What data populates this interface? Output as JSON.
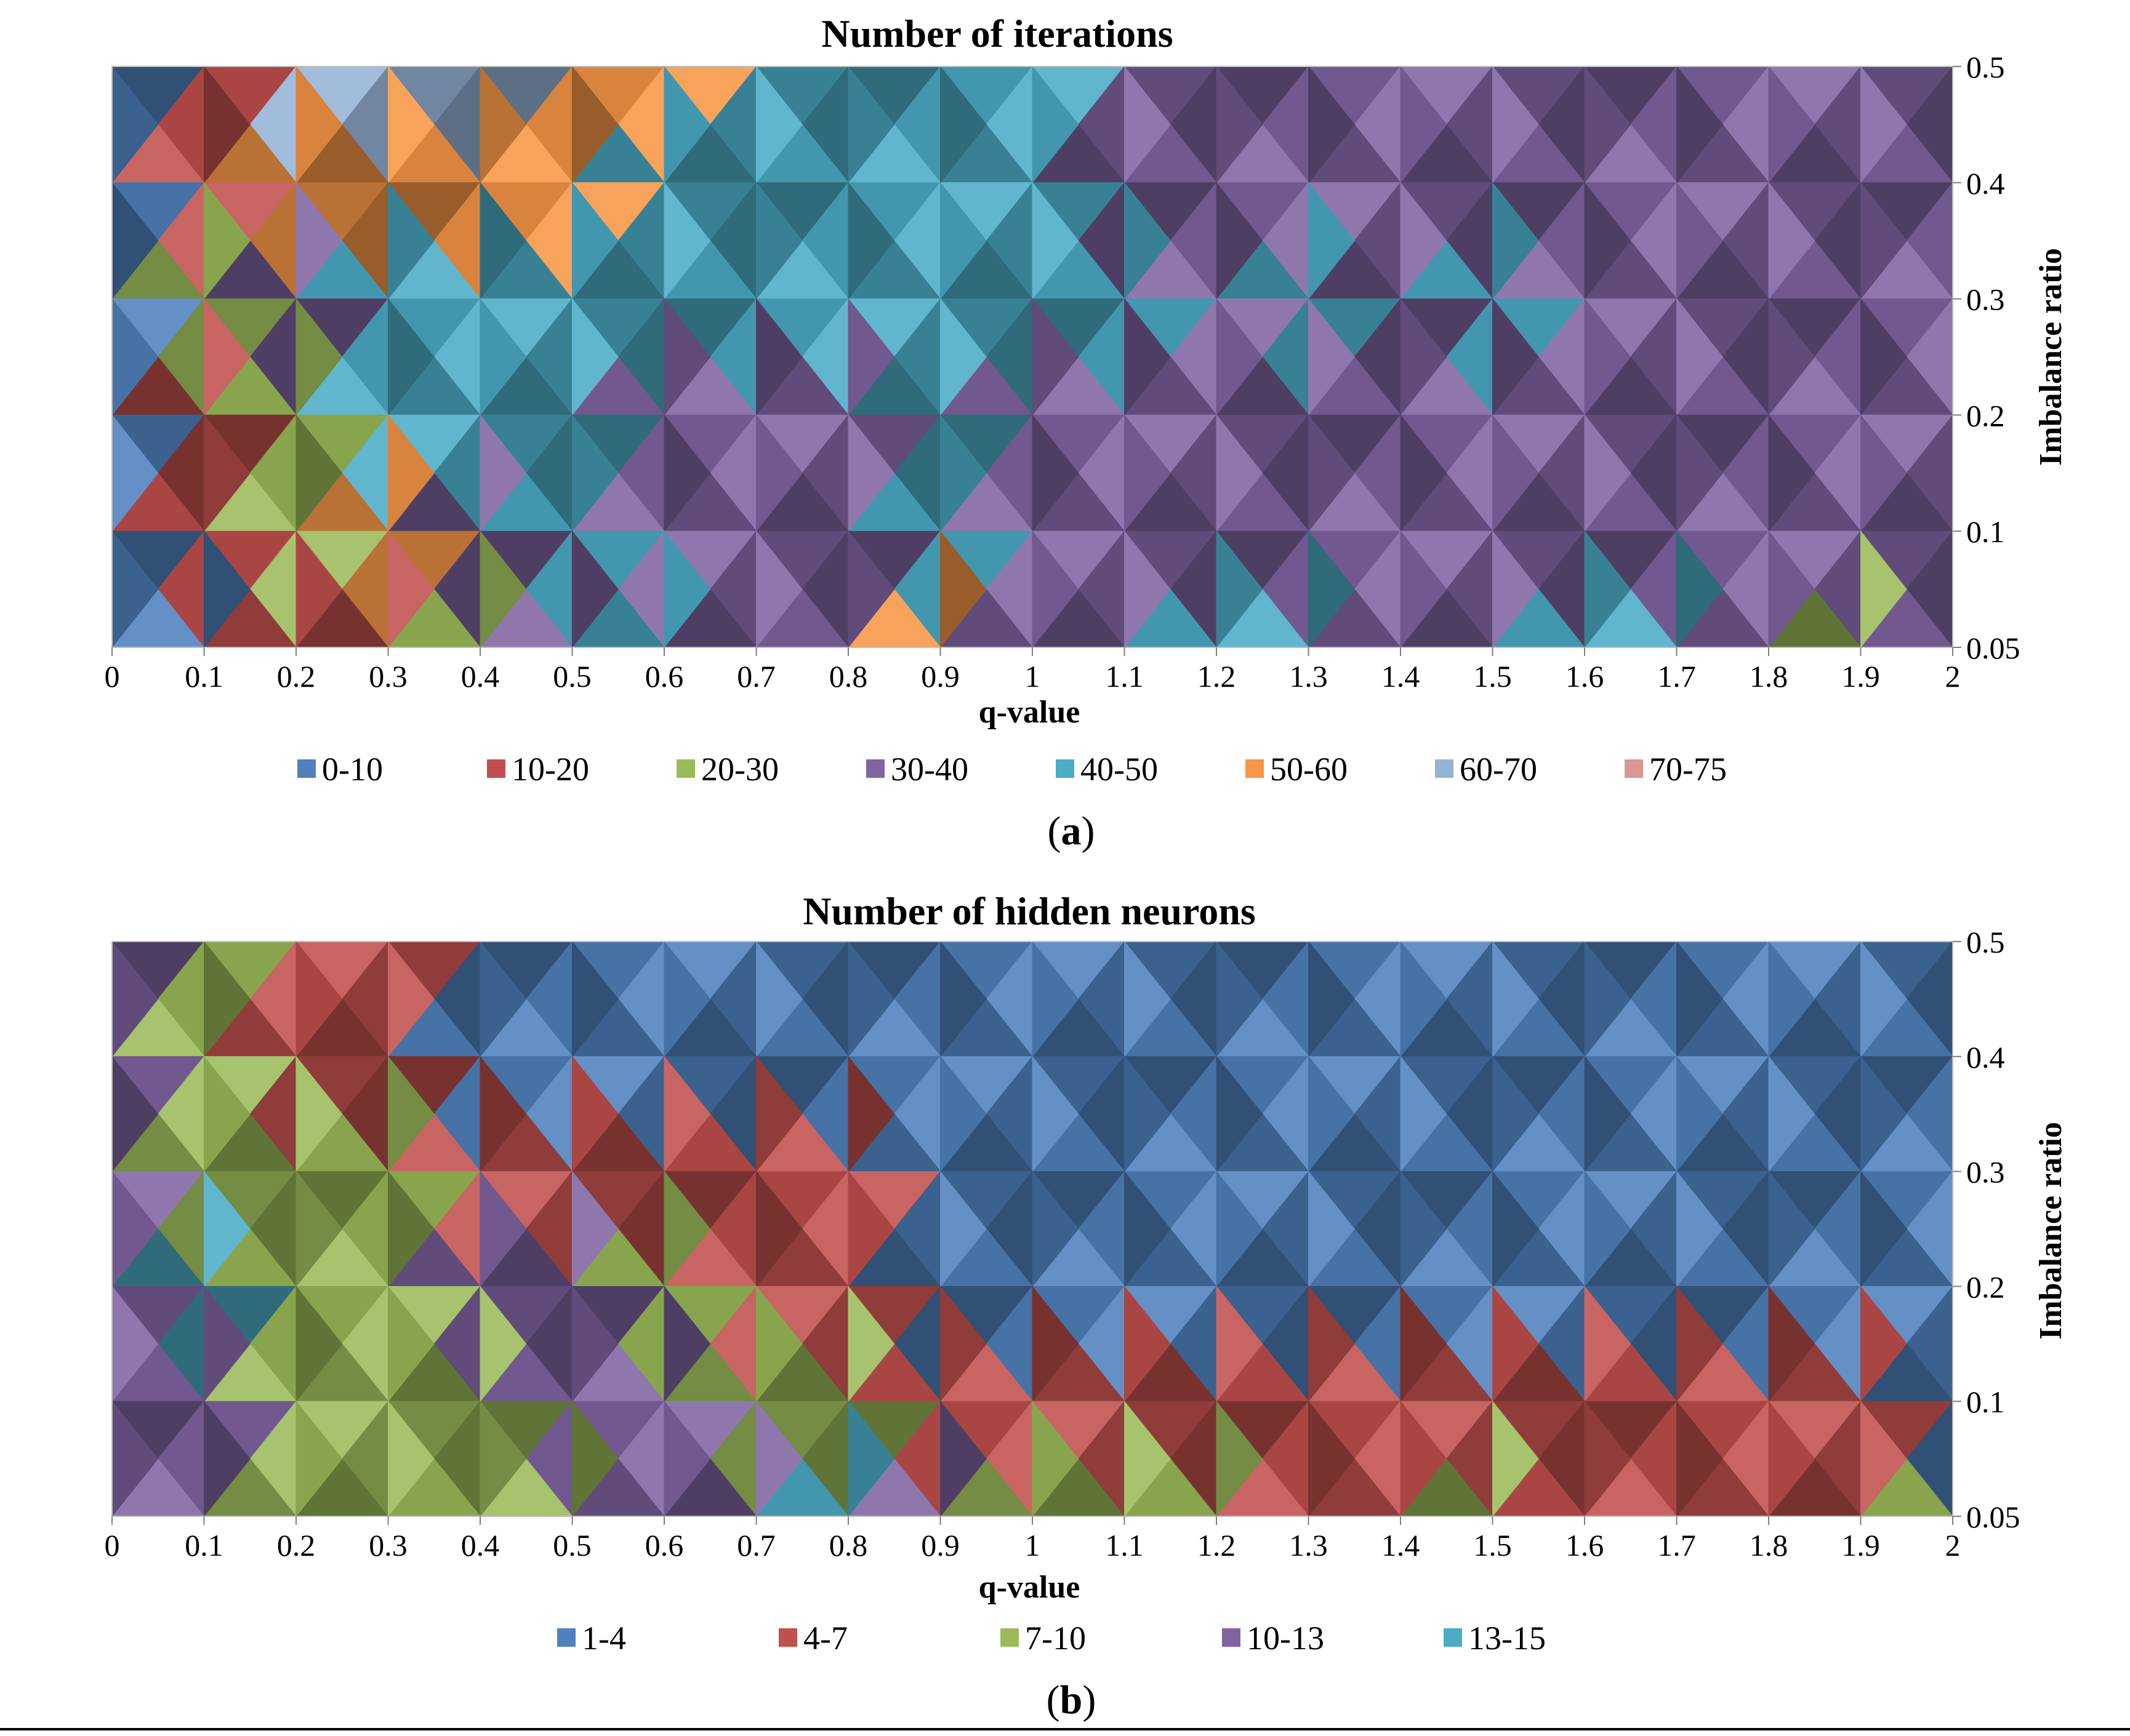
{
  "chart_data": [
    {
      "type": "heatmap",
      "subtype": "contour",
      "title": "Number of iterations",
      "xlabel": "q-value",
      "ylabel": "Imbalance ratio",
      "x": [
        "0",
        "0.1",
        "0.2",
        "0.3",
        "0.4",
        "0.5",
        "0.6",
        "0.7",
        "0.8",
        "0.9",
        "1",
        "1.1",
        "1.2",
        "1.3",
        "1.4",
        "1.5",
        "1.6",
        "1.7",
        "1.8",
        "1.9",
        "2"
      ],
      "y": [
        "0.5",
        "0.4",
        "0.3",
        "0.2",
        "0.1",
        "0.05"
      ],
      "legend": [
        {
          "label": "0-10",
          "color": "#4f81bd"
        },
        {
          "label": "10-20",
          "color": "#c0504d"
        },
        {
          "label": "20-30",
          "color": "#9bbb59"
        },
        {
          "label": "30-40",
          "color": "#8064a2"
        },
        {
          "label": "40-50",
          "color": "#4bacc6"
        },
        {
          "label": "50-60",
          "color": "#f79646"
        },
        {
          "label": "60-70",
          "color": "#95b3d7"
        },
        {
          "label": "70-75",
          "color": "#d99694"
        }
      ],
      "bands": [
        [
          "0-10",
          "10-20",
          "60-70",
          "60-70",
          "60-70",
          "50-60",
          "50-60",
          "40-50",
          "40-50",
          "40-50",
          "40-50",
          "30-40",
          "30-40",
          "30-40",
          "30-40",
          "30-40",
          "30-40",
          "30-40",
          "30-40",
          "30-40",
          "30-40"
        ],
        [
          "0-10",
          "10-20",
          "50-60",
          "50-60",
          "50-60",
          "50-60",
          "40-50",
          "40-50",
          "40-50",
          "40-50",
          "40-50",
          "30-40",
          "30-40",
          "30-40",
          "30-40",
          "30-40",
          "30-40",
          "30-40",
          "30-40",
          "30-40",
          "30-40"
        ],
        [
          "0-10",
          "20-30",
          "30-40",
          "40-50",
          "40-50",
          "40-50",
          "40-50",
          "40-50",
          "40-50",
          "40-50",
          "40-50",
          "40-50",
          "30-40",
          "40-50",
          "30-40",
          "40-50",
          "30-40",
          "30-40",
          "30-40",
          "30-40",
          "30-40"
        ],
        [
          "0-10",
          "10-20",
          "20-30",
          "40-50",
          "40-50",
          "40-50",
          "30-40",
          "30-40",
          "30-40",
          "40-50",
          "30-40",
          "30-40",
          "30-40",
          "30-40",
          "30-40",
          "30-40",
          "30-40",
          "30-40",
          "30-40",
          "30-40",
          "30-40"
        ],
        [
          "0-10",
          "10-20",
          "20-30",
          "50-60",
          "30-40",
          "40-50",
          "30-40",
          "30-40",
          "30-40",
          "40-50",
          "30-40",
          "30-40",
          "30-40",
          "30-40",
          "30-40",
          "30-40",
          "30-40",
          "30-40",
          "30-40",
          "30-40",
          "30-40"
        ],
        [
          "0-10",
          "0-10",
          "10-20",
          "10-20",
          "20-30",
          "30-40",
          "40-50",
          "30-40",
          "30-40",
          "50-60",
          "30-40",
          "30-40",
          "40-50",
          "40-50",
          "30-40",
          "30-40",
          "40-50",
          "40-50",
          "30-40",
          "20-30",
          "30-40"
        ]
      ],
      "caption": "a"
    },
    {
      "type": "heatmap",
      "subtype": "contour",
      "title": "Number of hidden neurons",
      "xlabel": "q-value",
      "ylabel": "Imbalance ratio",
      "x": [
        "0",
        "0.1",
        "0.2",
        "0.3",
        "0.4",
        "0.5",
        "0.6",
        "0.7",
        "0.8",
        "0.9",
        "1",
        "1.1",
        "1.2",
        "1.3",
        "1.4",
        "1.5",
        "1.6",
        "1.7",
        "1.8",
        "1.9",
        "2"
      ],
      "y": [
        "0.5",
        "0.4",
        "0.3",
        "0.2",
        "0.1",
        "0.05"
      ],
      "legend": [
        {
          "label": "1-4",
          "color": "#4f81bd"
        },
        {
          "label": "4-7",
          "color": "#c0504d"
        },
        {
          "label": "7-10",
          "color": "#9bbb59"
        },
        {
          "label": "10-13",
          "color": "#8064a2"
        },
        {
          "label": "13-15",
          "color": "#4bacc6"
        }
      ],
      "bands": [
        [
          "10-13",
          "7-10",
          "4-7",
          "4-7",
          "1-4",
          "1-4",
          "1-4",
          "1-4",
          "1-4",
          "1-4",
          "1-4",
          "1-4",
          "1-4",
          "1-4",
          "1-4",
          "1-4",
          "1-4",
          "1-4",
          "1-4",
          "1-4",
          "1-4"
        ],
        [
          "10-13",
          "7-10",
          "4-7",
          "4-7",
          "1-4",
          "1-4",
          "1-4",
          "1-4",
          "1-4",
          "1-4",
          "1-4",
          "1-4",
          "1-4",
          "1-4",
          "1-4",
          "1-4",
          "1-4",
          "1-4",
          "1-4",
          "1-4",
          "1-4"
        ],
        [
          "10-13",
          "7-10",
          "7-10",
          "7-10",
          "4-7",
          "4-7",
          "4-7",
          "4-7",
          "4-7",
          "1-4",
          "1-4",
          "1-4",
          "1-4",
          "1-4",
          "1-4",
          "1-4",
          "1-4",
          "1-4",
          "1-4",
          "1-4",
          "1-4"
        ],
        [
          "10-13",
          "13-15",
          "7-10",
          "7-10",
          "10-13",
          "10-13",
          "7-10",
          "4-7",
          "4-7",
          "1-4",
          "1-4",
          "1-4",
          "1-4",
          "1-4",
          "1-4",
          "1-4",
          "1-4",
          "1-4",
          "1-4",
          "1-4",
          "1-4"
        ],
        [
          "10-13",
          "10-13",
          "7-10",
          "7-10",
          "7-10",
          "10-13",
          "10-13",
          "7-10",
          "7-10",
          "4-7",
          "4-7",
          "4-7",
          "4-7",
          "4-7",
          "4-7",
          "4-7",
          "4-7",
          "4-7",
          "4-7",
          "4-7",
          "1-4"
        ],
        [
          "10-13",
          "10-13",
          "7-10",
          "7-10",
          "7-10",
          "7-10",
          "10-13",
          "10-13",
          "13-15",
          "10-13",
          "7-10",
          "7-10",
          "7-10",
          "4-7",
          "4-7",
          "7-10",
          "4-7",
          "4-7",
          "4-7",
          "4-7",
          "7-10"
        ]
      ],
      "caption": "b"
    }
  ]
}
